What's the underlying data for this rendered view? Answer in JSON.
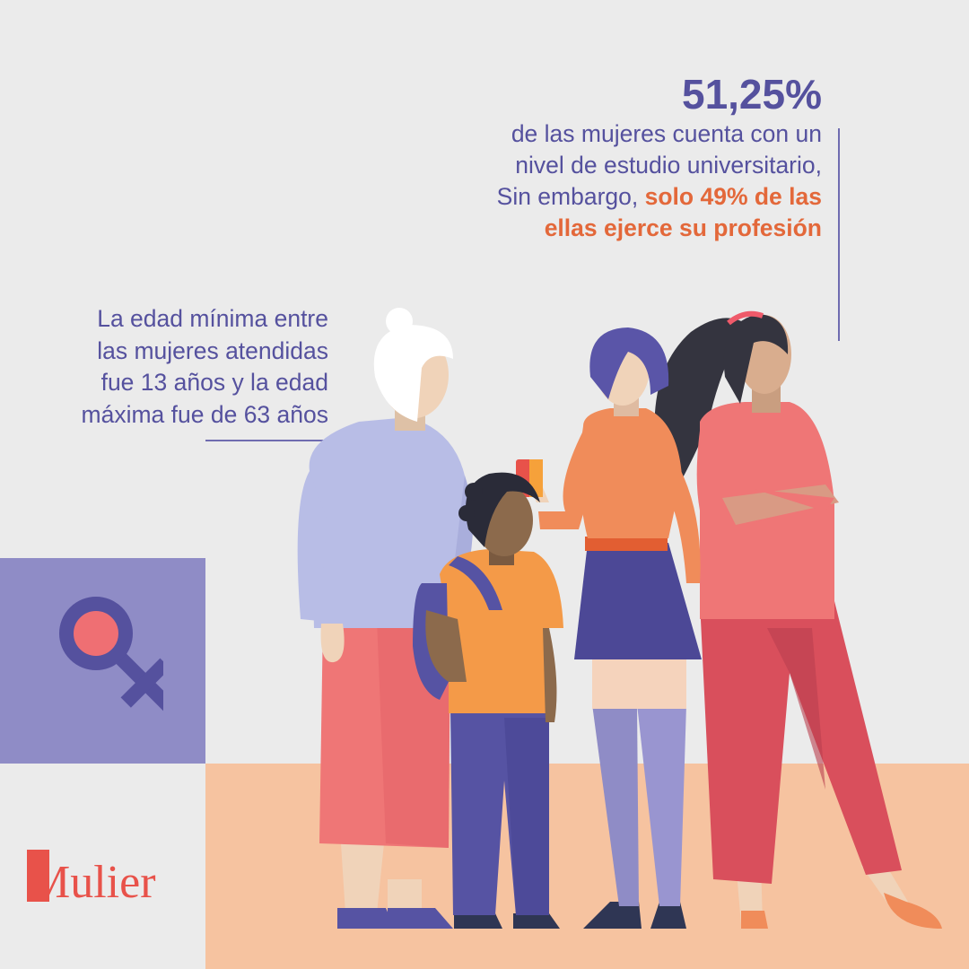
{
  "stat": {
    "number": "51,25%",
    "line1": "de las mujeres cuenta con un",
    "line2": "nivel de estudio universitario,",
    "line3_normal": "Sin embargo, ",
    "line3_bold": "solo 49% de las",
    "line4_bold": "ellas ejerce su profesión"
  },
  "age": {
    "line1": "La edad mínima entre",
    "line2": "las mujeres atendidas",
    "line3": "fue 13 años y la edad",
    "line4": "máxima fue de 63 años"
  },
  "brand": {
    "name": "Mulier"
  },
  "icons": {
    "gender": "venus-icon"
  },
  "colors": {
    "background": "#ebebeb",
    "purple": "#55519e",
    "purple_block": "#8f8cc6",
    "orange": "#e3683a",
    "peach": "#f6c3a0",
    "logo_red": "#e8524a"
  }
}
